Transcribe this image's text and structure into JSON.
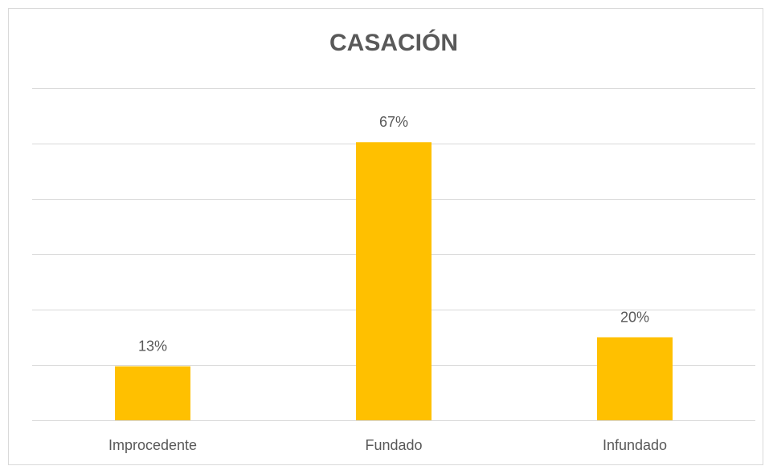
{
  "chart_data": {
    "type": "bar",
    "title": "CASACIÓN",
    "categories": [
      "Improcedente",
      "Fundado",
      "Infundado"
    ],
    "values": [
      13,
      67,
      20
    ],
    "value_labels": [
      "13%",
      "67%",
      "20%"
    ],
    "color": "#ffc000",
    "ylim": [
      0,
      80
    ],
    "yticks": [
      0,
      13.33,
      26.67,
      40,
      53.33,
      66.67,
      80
    ],
    "grid": true
  }
}
